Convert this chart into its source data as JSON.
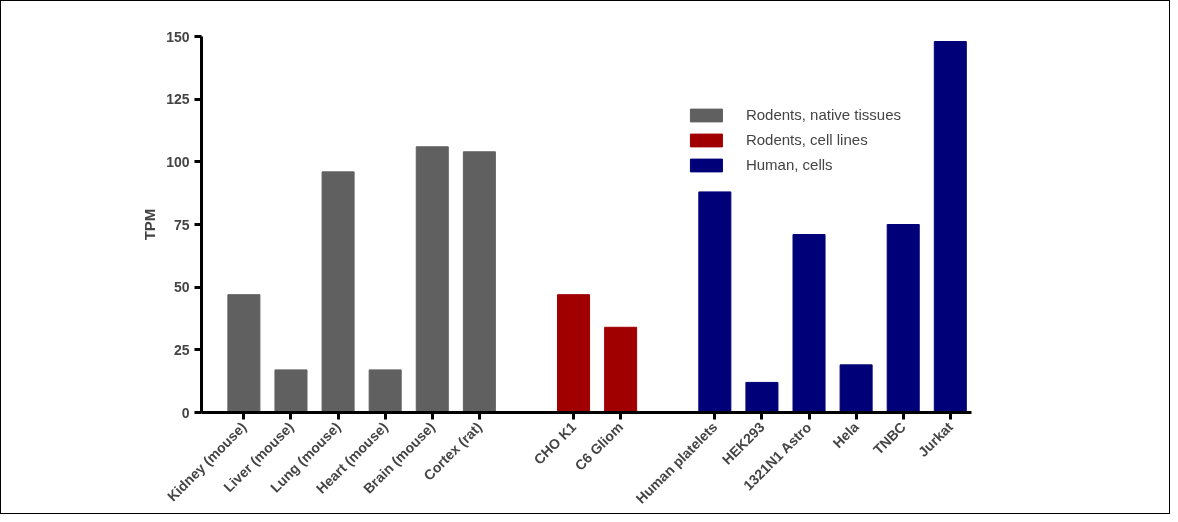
{
  "chart_data": {
    "type": "bar",
    "ylabel": "TPM",
    "categories": [
      "Kidney (mouse)",
      "Liver (mouse)",
      "Lung (mouse)",
      "Heart (mouse)",
      "Brain (mouse)",
      "Cortex (rat)",
      null,
      "CHO K1",
      "C6 Gliom",
      null,
      "Human platelets",
      "HEK293",
      "1321N1 Astro",
      "Hela",
      "TNBC",
      "Jurkat"
    ],
    "series": [
      {
        "name": "Rodents, native tissues",
        "color": "#606060",
        "values": [
          47,
          17,
          96,
          17,
          106,
          104,
          null,
          null,
          null,
          null,
          null,
          null,
          null,
          null,
          null,
          null
        ]
      },
      {
        "name": "Rodents, cell lines",
        "color": "#a00000",
        "values": [
          null,
          null,
          null,
          null,
          null,
          null,
          null,
          47,
          34,
          null,
          null,
          null,
          null,
          null,
          null,
          null
        ]
      },
      {
        "name": "Human, cells",
        "color": "#000078",
        "values": [
          null,
          null,
          null,
          null,
          null,
          null,
          null,
          null,
          null,
          null,
          88,
          12,
          71,
          19,
          75,
          148
        ]
      }
    ],
    "ylim": [
      0,
      150
    ],
    "yticks": [
      0,
      25,
      50,
      75,
      100,
      125,
      150
    ],
    "grid": false,
    "legend": "top right"
  }
}
